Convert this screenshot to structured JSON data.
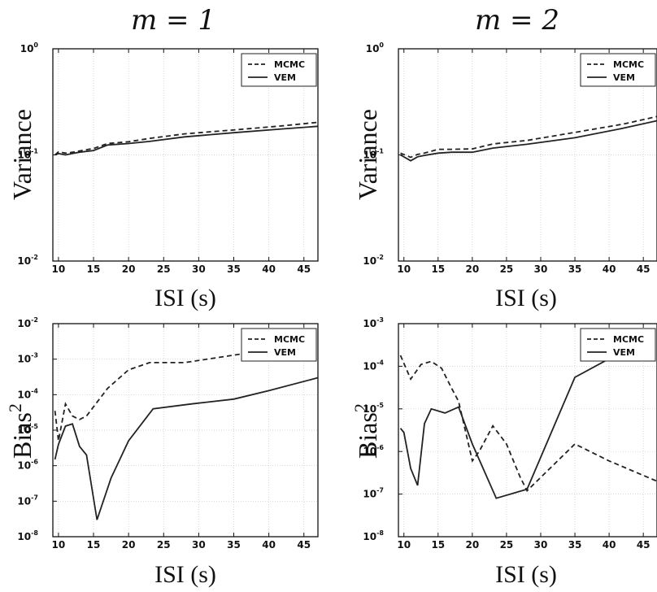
{
  "chart_data": [
    {
      "type": "line",
      "title": "m = 1",
      "xlabel": "ISI (s)",
      "ylabel": "Variance",
      "yscale": "log",
      "xlim": [
        9.2,
        47
      ],
      "ylim": [
        0.01,
        1
      ],
      "xticks": [
        "10",
        "15",
        "20",
        "25",
        "30",
        "35",
        "40",
        "45"
      ],
      "yticks": [
        {
          "value": 0.01,
          "base": "10",
          "exp": "-2"
        },
        {
          "value": 0.1,
          "base": "10",
          "exp": "-1"
        },
        {
          "value": 1,
          "base": "10",
          "exp": "0"
        }
      ],
      "grid": true,
      "legend_position": "top-right",
      "series": [
        {
          "name": "MCMC",
          "style": "dashed",
          "x": [
            9.5,
            10,
            11,
            12,
            13,
            15,
            17,
            20,
            23,
            28,
            35,
            42,
            47
          ],
          "y": [
            0.1,
            0.107,
            0.104,
            0.106,
            0.109,
            0.115,
            0.128,
            0.133,
            0.143,
            0.158,
            0.172,
            0.188,
            0.203
          ]
        },
        {
          "name": "VEM",
          "style": "solid",
          "x": [
            9.5,
            10,
            11,
            12,
            13,
            15,
            17,
            20,
            23,
            28,
            35,
            42,
            47
          ],
          "y": [
            0.1,
            0.103,
            0.1,
            0.103,
            0.106,
            0.11,
            0.124,
            0.128,
            0.134,
            0.148,
            0.162,
            0.176,
            0.186
          ]
        }
      ]
    },
    {
      "type": "line",
      "title": "m = 2",
      "xlabel": "ISI (s)",
      "ylabel": "Variance",
      "yscale": "log",
      "xlim": [
        9.2,
        47
      ],
      "ylim": [
        0.01,
        1
      ],
      "xticks": [
        "10",
        "15",
        "20",
        "25",
        "30",
        "35",
        "40",
        "45"
      ],
      "yticks": [
        {
          "value": 0.01,
          "base": "10",
          "exp": "-2"
        },
        {
          "value": 0.1,
          "base": "10",
          "exp": "-1"
        },
        {
          "value": 1,
          "base": "10",
          "exp": "0"
        }
      ],
      "grid": true,
      "legend_position": "top-right",
      "series": [
        {
          "name": "MCMC",
          "style": "dashed",
          "x": [
            9.5,
            11,
            12,
            13,
            15,
            17,
            20,
            23,
            28,
            35,
            42,
            47
          ],
          "y": [
            0.104,
            0.095,
            0.101,
            0.104,
            0.113,
            0.113,
            0.114,
            0.127,
            0.137,
            0.163,
            0.195,
            0.23
          ]
        },
        {
          "name": "VEM",
          "style": "solid",
          "x": [
            9.5,
            11,
            12,
            13,
            15,
            17,
            20,
            23,
            28,
            35,
            42,
            47
          ],
          "y": [
            0.1,
            0.088,
            0.096,
            0.099,
            0.104,
            0.106,
            0.106,
            0.116,
            0.126,
            0.145,
            0.178,
            0.21
          ]
        }
      ]
    },
    {
      "type": "line",
      "title": "",
      "xlabel": "ISI (s)",
      "ylabel": "Bias²",
      "ylabel_base": "Bias",
      "ylabel_sup": "2",
      "yscale": "log",
      "xlim": [
        9.2,
        47
      ],
      "ylim": [
        1e-08,
        0.01
      ],
      "xticks": [
        "10",
        "15",
        "20",
        "25",
        "30",
        "35",
        "40",
        "45"
      ],
      "yticks": [
        {
          "value": 1e-08,
          "base": "10",
          "exp": "-8"
        },
        {
          "value": 1e-07,
          "base": "10",
          "exp": "-7"
        },
        {
          "value": 1e-06,
          "base": "10",
          "exp": "-6"
        },
        {
          "value": 1e-05,
          "base": "10",
          "exp": "-5"
        },
        {
          "value": 0.0001,
          "base": "10",
          "exp": "-4"
        },
        {
          "value": 0.001,
          "base": "10",
          "exp": "-3"
        },
        {
          "value": 0.01,
          "base": "10",
          "exp": "-2"
        }
      ],
      "grid": true,
      "legend_position": "top-right",
      "series": [
        {
          "name": "MCMC",
          "style": "dashed",
          "x": [
            9.5,
            10,
            11,
            12,
            13,
            14,
            17,
            20,
            23,
            28,
            35,
            40
          ],
          "y": [
            3.5e-05,
            5e-06,
            5.5e-05,
            2.5e-05,
            2e-05,
            2.5e-05,
            0.00015,
            0.0005,
            0.0008,
            0.0008,
            0.0013,
            0.0018
          ]
        },
        {
          "name": "VEM",
          "style": "solid",
          "x": [
            9.5,
            10,
            11,
            12,
            13,
            14,
            15.5,
            17.5,
            20,
            23.5,
            29,
            35,
            40,
            47
          ],
          "y": [
            1.5e-06,
            4e-06,
            1.3e-05,
            1.5e-05,
            3.5e-06,
            2e-06,
            3e-08,
            4.5e-07,
            5e-06,
            4e-05,
            5.5e-05,
            7.5e-05,
            0.00013,
            0.0003
          ]
        }
      ]
    },
    {
      "type": "line",
      "title": "",
      "xlabel": "ISI (s)",
      "ylabel": "Bias²",
      "ylabel_base": "Bias",
      "ylabel_sup": "2",
      "yscale": "log",
      "xlim": [
        9.2,
        47
      ],
      "ylim": [
        1e-08,
        0.001
      ],
      "xticks": [
        "10",
        "15",
        "20",
        "25",
        "30",
        "35",
        "40",
        "45"
      ],
      "yticks": [
        {
          "value": 1e-08,
          "base": "10",
          "exp": "-8"
        },
        {
          "value": 1e-07,
          "base": "10",
          "exp": "-7"
        },
        {
          "value": 1e-06,
          "base": "10",
          "exp": "-6"
        },
        {
          "value": 1e-05,
          "base": "10",
          "exp": "-5"
        },
        {
          "value": 0.0001,
          "base": "10",
          "exp": "-4"
        },
        {
          "value": 0.001,
          "base": "10",
          "exp": "-3"
        }
      ],
      "grid": true,
      "legend_position": "top-right",
      "series": [
        {
          "name": "MCMC",
          "style": "dashed",
          "x": [
            9.5,
            11,
            12.5,
            14,
            15.5,
            17,
            18,
            20,
            21,
            23,
            25,
            27,
            28,
            35,
            40,
            47
          ],
          "y": [
            0.00018,
            5e-05,
            0.00011,
            0.00013,
            9e-05,
            3e-05,
            1.5e-05,
            6e-07,
            1e-06,
            4e-06,
            1.5e-06,
            2.5e-07,
            1.2e-07,
            1.5e-06,
            6e-07,
            2e-07
          ]
        },
        {
          "name": "VEM",
          "style": "solid",
          "x": [
            9.5,
            10,
            11,
            12,
            13,
            14,
            16,
            18,
            20,
            23.5,
            28,
            35,
            40,
            42
          ],
          "y": [
            3.5e-06,
            2.8e-06,
            4e-07,
            1.6e-07,
            4.5e-06,
            1e-05,
            8e-06,
            1.1e-05,
            1.5e-06,
            8e-08,
            1.3e-07,
            5.5e-05,
            0.00015,
            0.0002
          ]
        }
      ]
    }
  ]
}
